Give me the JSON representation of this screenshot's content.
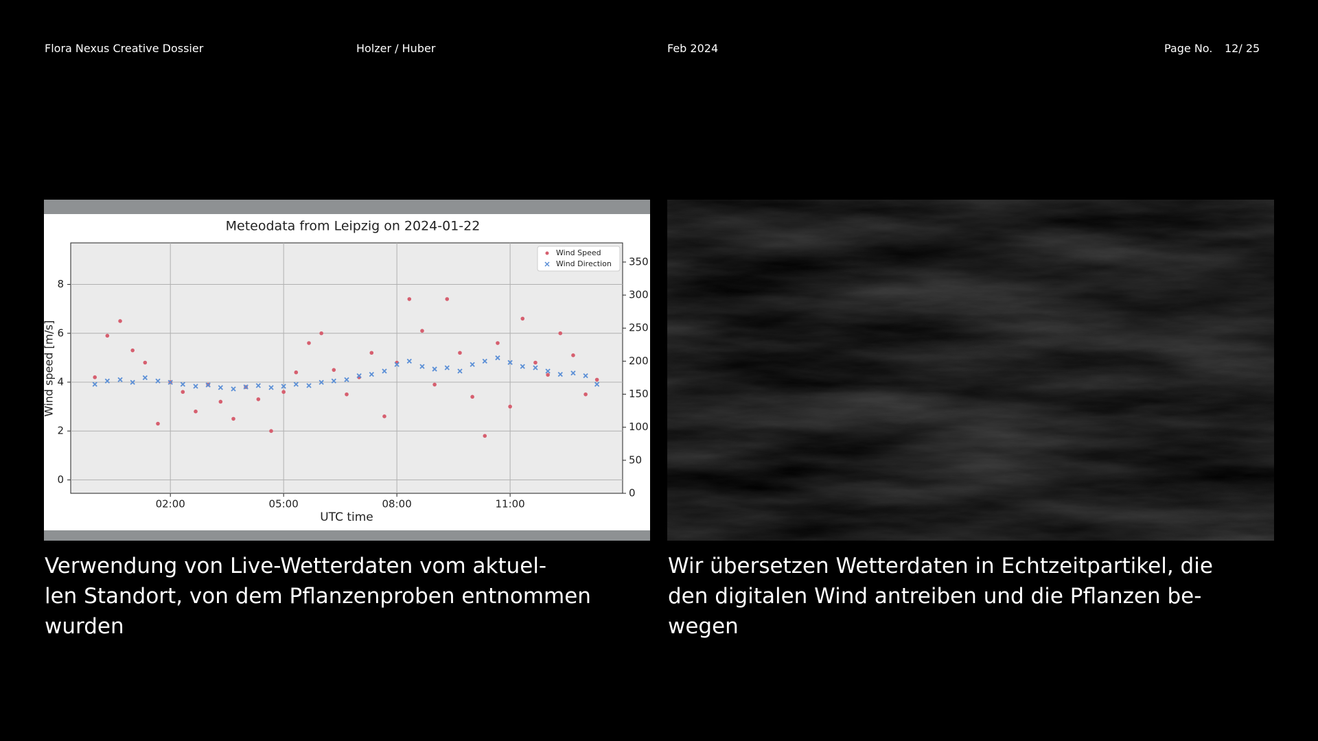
{
  "header": {
    "title": "Flora Nexus Creative Dossier",
    "authors": "Holzer / Huber",
    "date": "Feb 2024",
    "page_label": "Page No.",
    "page_number": "12/ 25"
  },
  "chart_data": {
    "type": "scatter",
    "title": "Meteodata from Leipzig on 2024-01-22",
    "x_label": "UTC time",
    "y_label": "Wind speed [m/s]",
    "x": [
      0,
      0.33,
      0.67,
      1,
      1.33,
      1.67,
      2,
      2.33,
      2.67,
      3,
      3.33,
      3.67,
      4,
      4.33,
      4.67,
      5,
      5.33,
      5.67,
      6,
      6.33,
      6.67,
      7,
      7.33,
      7.67,
      8,
      8.33,
      8.67,
      9,
      9.33,
      9.67,
      10,
      10.33,
      10.67,
      11,
      11.33,
      11.67,
      12,
      12.33,
      12.67,
      13,
      13.3
    ],
    "series": [
      {
        "name": "Wind Speed",
        "color": "#d65f6f",
        "marker": "dot",
        "values": [
          4.2,
          5.9,
          6.5,
          5.3,
          4.8,
          2.3,
          4.0,
          3.6,
          2.8,
          3.9,
          3.2,
          2.5,
          3.8,
          3.3,
          2.0,
          3.6,
          4.4,
          5.6,
          6.0,
          4.5,
          3.5,
          4.2,
          5.2,
          2.6,
          4.8,
          7.4,
          6.1,
          3.9,
          7.4,
          5.2,
          3.4,
          1.8,
          5.6,
          3.0,
          6.6,
          4.8,
          4.3,
          6.0,
          5.1,
          3.5,
          4.1
        ]
      },
      {
        "name": "Wind Direction",
        "color": "#5b8fd6",
        "marker": "x",
        "axis": "y2",
        "values": [
          165,
          170,
          172,
          168,
          175,
          170,
          168,
          165,
          162,
          164,
          160,
          158,
          161,
          163,
          160,
          162,
          165,
          163,
          168,
          170,
          172,
          178,
          180,
          185,
          195,
          200,
          192,
          188,
          190,
          185,
          195,
          200,
          205,
          198,
          192,
          190,
          185,
          180,
          182,
          178,
          165
        ]
      }
    ],
    "xlim": [
      -0.64,
      13.98
    ],
    "xticks": [
      {
        "value": 2,
        "label": "02:00"
      },
      {
        "value": 5,
        "label": "05:00"
      },
      {
        "value": 8,
        "label": "08:00"
      },
      {
        "value": 11,
        "label": "11:00"
      }
    ],
    "ylim": [
      -0.55,
      9.7
    ],
    "yticks": [
      0,
      2,
      4,
      6,
      8
    ],
    "y2lim": [
      0,
      379
    ],
    "y2ticks": [
      0,
      50,
      100,
      150,
      200,
      250,
      300,
      350
    ],
    "grid": true,
    "legend": "upper-right"
  },
  "captions": {
    "left": [
      "Verwendung von Live-Wetterdaten vom aktuel-",
      "len Standort, von dem Pflanzenproben entnommen",
      "wurden"
    ],
    "right": [
      "Wir übersetzen Wetterdaten in Echtzeitpartikel, die",
      "den digitalen Wind antreiben und die Pflanzen be-",
      "wegen"
    ]
  }
}
